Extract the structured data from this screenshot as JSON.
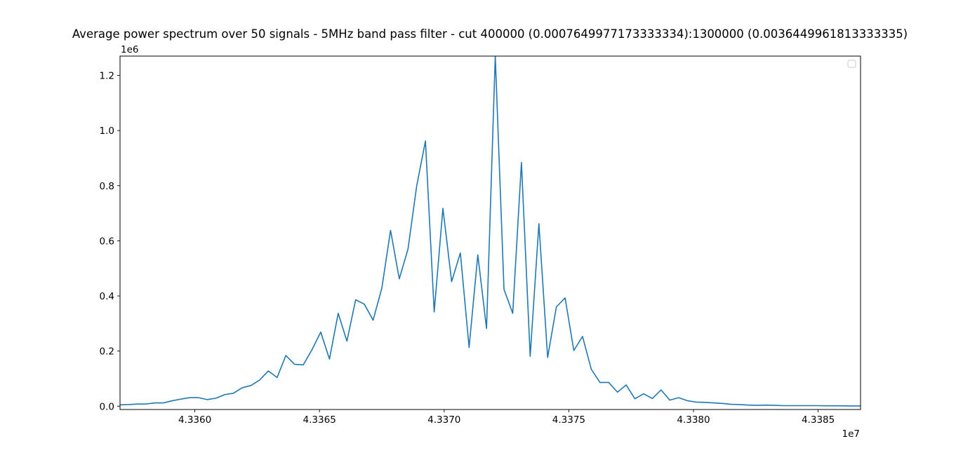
{
  "chart_data": {
    "type": "line",
    "title": "Average power spectrum over 50 signals - 5MHz band pass filter - cut 400000 (0.0007649977173333334):1300000 (0.0036449961813333335)",
    "xlabel": "",
    "ylabel": "",
    "x_offset_label": "1e7",
    "y_offset_label": "1e6",
    "xlim": [
      43357000,
      43386700
    ],
    "ylim": [
      -12000,
      1270000
    ],
    "x_ticks": [
      43360000,
      43365000,
      43370000,
      43375000,
      43380000,
      43385000
    ],
    "x_tick_labels": [
      "4.3360",
      "4.3365",
      "4.3370",
      "4.3375",
      "4.3380",
      "4.3385"
    ],
    "y_ticks": [
      0,
      200000,
      400000,
      600000,
      800000,
      1000000,
      1200000
    ],
    "y_tick_labels": [
      "0.0",
      "0.2",
      "0.4",
      "0.6",
      "0.8",
      "1.0",
      "1.2"
    ],
    "grid": false,
    "legend": "top-right",
    "legend_entries": [],
    "series_color": "#1f77b4",
    "series": [
      {
        "x": [
          43357000,
          43357350,
          43357700,
          43358050,
          43358400,
          43358750,
          43359100,
          43359450,
          43359800,
          43360150,
          43360500,
          43360850,
          43361200,
          43361550,
          43361900,
          43362250,
          43362600,
          43362950,
          43363300,
          43363650,
          43364000,
          43364350,
          43364700,
          43365050,
          43365400,
          43365750,
          43366100,
          43366450,
          43366800,
          43367150,
          43367500,
          43367850,
          43368200,
          43368550,
          43368900,
          43369250,
          43369600,
          43369950,
          43370300,
          43370650,
          43371000,
          43371350,
          43371700,
          43372050,
          43372400,
          43372750,
          43373100,
          43373450,
          43373800,
          43374150,
          43374500,
          43374850,
          43375200,
          43375550,
          43375900,
          43376250,
          43376600,
          43376950,
          43377300,
          43377650,
          43378000,
          43378350,
          43378700,
          43379050,
          43379400,
          43379750,
          43380100,
          43380450,
          43380800,
          43381150,
          43381500,
          43381850,
          43382200,
          43382550,
          43382900,
          43383250,
          43383600,
          43383950,
          43384300,
          43384650,
          43385000,
          43385350,
          43385700,
          43386050,
          43386400,
          43386700
        ],
        "y": [
          5000,
          6000,
          8000,
          8000,
          12000,
          12000,
          20000,
          26000,
          31000,
          31000,
          24000,
          29000,
          42000,
          47000,
          67000,
          75000,
          95000,
          128000,
          104000,
          184000,
          152000,
          150000,
          205000,
          269000,
          171000,
          337000,
          236000,
          386000,
          370000,
          312000,
          428000,
          638000,
          462000,
          570000,
          800000,
          962000,
          342000,
          718000,
          452000,
          556000,
          213000,
          549000,
          282000,
          1270000,
          424000,
          337000,
          884000,
          181000,
          662000,
          177000,
          360000,
          393000,
          202000,
          253000,
          134000,
          86000,
          86000,
          51000,
          77000,
          27000,
          45000,
          28000,
          59000,
          22000,
          31000,
          20000,
          15000,
          14000,
          12000,
          10000,
          7000,
          6000,
          4000,
          3000,
          4000,
          3000,
          2000,
          2000,
          2000,
          2000,
          2000,
          1500,
          1500,
          1200,
          1000,
          1000
        ]
      }
    ]
  }
}
